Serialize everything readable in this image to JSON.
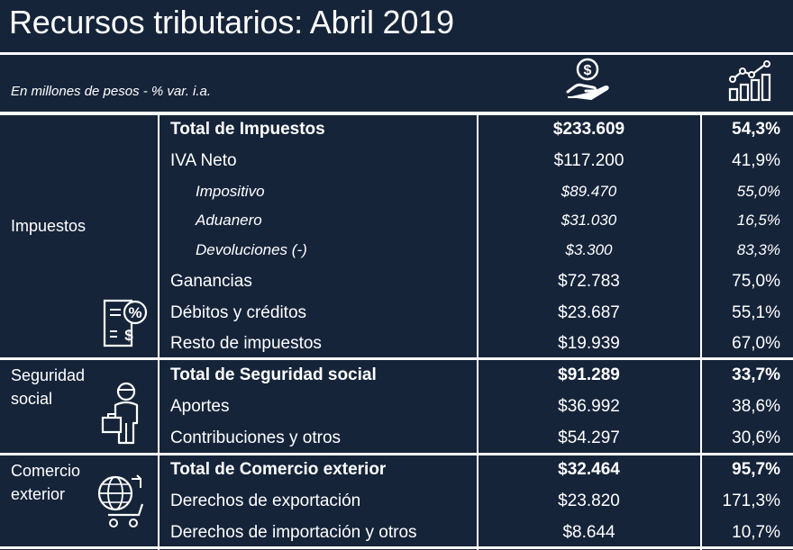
{
  "title": "Recursos tributarios: Abril 2019",
  "subtitle": "En millones de pesos - % var. i.a.",
  "header_icons": [
    "hand-money-icon",
    "growth-chart-icon"
  ],
  "colors": {
    "background": "#16243a",
    "text": "#ffffff",
    "lines": "#ffffff"
  },
  "groups": [
    {
      "label": "Impuestos",
      "icon": "tax-document-icon",
      "rows": [
        {
          "name": "Total de Impuestos",
          "amount": "$233.609",
          "pct": "54,3%",
          "style": "bold"
        },
        {
          "name": "IVA Neto",
          "amount": "$117.200",
          "pct": "41,9%",
          "style": "normal"
        },
        {
          "name": "Impositivo",
          "amount": "$89.470",
          "pct": "55,0%",
          "style": "sub"
        },
        {
          "name": "Aduanero",
          "amount": "$31.030",
          "pct": "16,5%",
          "style": "sub"
        },
        {
          "name": "Devoluciones (-)",
          "amount": "$3.300",
          "pct": "83,3%",
          "style": "sub"
        },
        {
          "name": "Ganancias",
          "amount": "$72.783",
          "pct": "75,0%",
          "style": "normal"
        },
        {
          "name": "Débitos y créditos",
          "amount": "$23.687",
          "pct": "55,1%",
          "style": "normal"
        },
        {
          "name": "Resto de impuestos",
          "amount": "$19.939",
          "pct": "67,0%",
          "style": "normal"
        }
      ]
    },
    {
      "label_lines": [
        "Seguridad",
        "social"
      ],
      "icon": "worker-briefcase-icon",
      "rows": [
        {
          "name": "Total de Seguridad social",
          "amount": "$91.289",
          "pct": "33,7%",
          "style": "bold"
        },
        {
          "name": "Aportes",
          "amount": "$36.992",
          "pct": "38,6%",
          "style": "normal"
        },
        {
          "name": "Contribuciones y otros",
          "amount": "$54.297",
          "pct": "30,6%",
          "style": "normal"
        }
      ]
    },
    {
      "label_lines": [
        "Comercio",
        "exterior"
      ],
      "icon": "globe-cart-icon",
      "rows": [
        {
          "name": "Total de Comercio exterior",
          "amount": "$32.464",
          "pct": "95,7%",
          "style": "bold"
        },
        {
          "name": "Derechos de exportación",
          "amount": "$23.820",
          "pct": "171,3%",
          "style": "normal"
        },
        {
          "name": "Derechos de importación y otros",
          "amount": "$8.644",
          "pct": "10,7%",
          "style": "normal"
        }
      ]
    }
  ]
}
